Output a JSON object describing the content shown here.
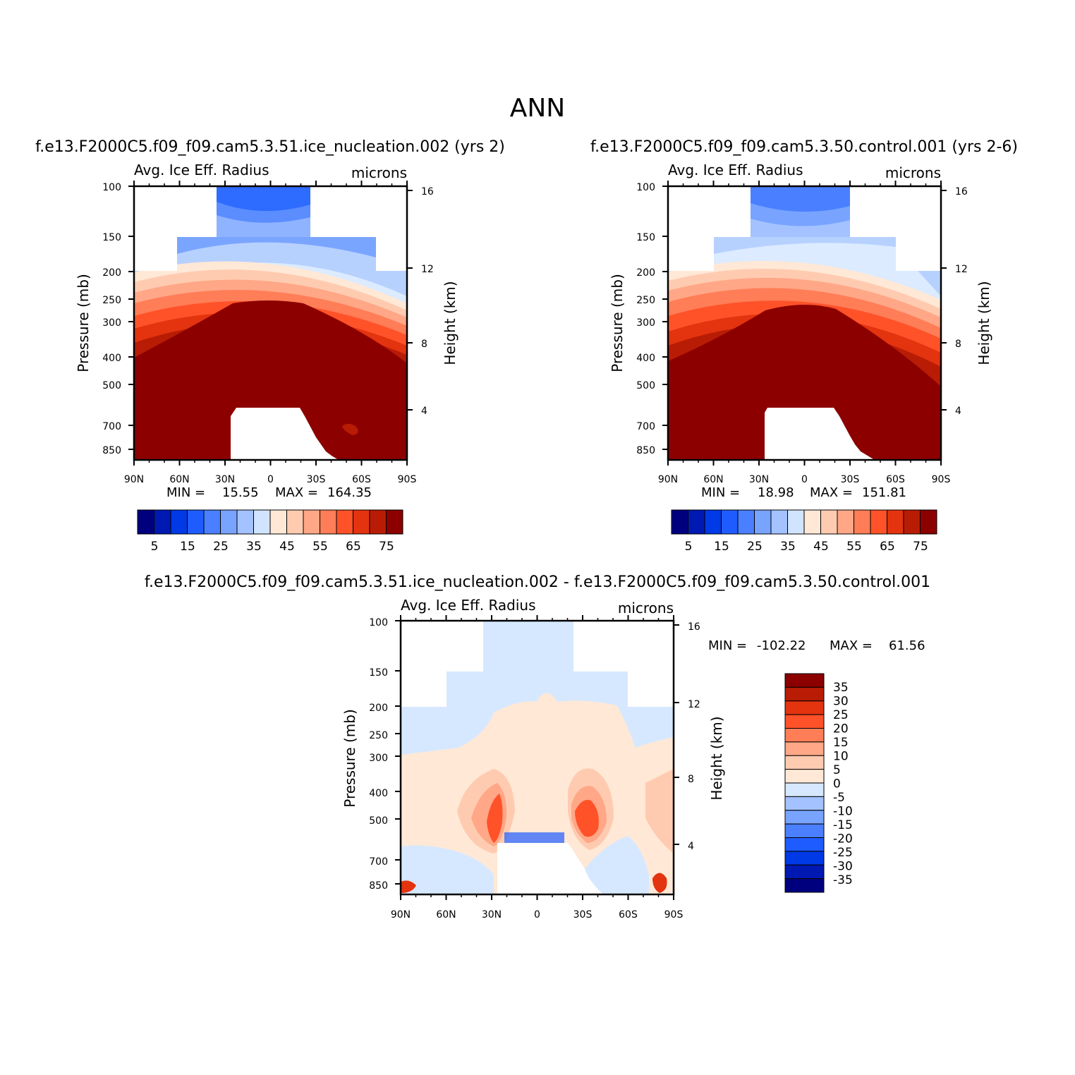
{
  "figure": {
    "title": "ANN"
  },
  "palettes": {
    "sequential": [
      "#00007f",
      "#0019b3",
      "#0039e6",
      "#1f5cff",
      "#4a80ff",
      "#78a3ff",
      "#a3c2ff",
      "#d1e4ff",
      "#ffe8d6",
      "#ffcbb0",
      "#ffa787",
      "#ff7d57",
      "#ff5229",
      "#e3330f",
      "#b81c05",
      "#8c0000"
    ],
    "diverging": [
      "#00007f",
      "#0019b3",
      "#0039e6",
      "#1f5cff",
      "#4a80ff",
      "#78a3ff",
      "#a3c2ff",
      "#d6e8ff",
      "#ffe8d6",
      "#ffcbb0",
      "#ffa787",
      "#ff7d57",
      "#ff5229",
      "#e3330f",
      "#b81c05",
      "#8c0000"
    ]
  },
  "chart_data": [
    {
      "type": "heatmap",
      "title": "f.e13.F2000C5.f09_f09.cam5.3.51.ice_nucleation.002  (yrs  2)",
      "subtitle_left": "Avg.  Ice  Eff.  Radius",
      "subtitle_right": "microns",
      "xlabel": "",
      "ylabel": "Pressure  (mb)",
      "ylabel_right": "Height  (km)",
      "x_ticks": [
        "90N",
        "60N",
        "30N",
        "0",
        "30S",
        "60S",
        "90S"
      ],
      "y_ticks": [
        "100",
        "150",
        "200",
        "250",
        "300",
        "400",
        "500",
        "700",
        "850"
      ],
      "y_ticks_right": [
        "16",
        "12",
        "8",
        "4"
      ],
      "min_label": "MIN  =",
      "min_value": "15.55",
      "max_label": "MAX  =",
      "max_value": "164.35",
      "colorbar_labels": [
        "5",
        "15",
        "25",
        "35",
        "45",
        "55",
        "65",
        "75"
      ],
      "xlim": [
        90,
        -90
      ],
      "ylim": [
        100,
        1000
      ],
      "palette": "sequential"
    },
    {
      "type": "heatmap",
      "title": "f.e13.F2000C5.f09_f09.cam5.3.50.control.001  (yrs  2-6)",
      "subtitle_left": "Avg.  Ice  Eff.  Radius",
      "subtitle_right": "microns",
      "xlabel": "",
      "ylabel": "Pressure  (mb)",
      "ylabel_right": "Height  (km)",
      "x_ticks": [
        "90N",
        "60N",
        "30N",
        "0",
        "30S",
        "60S",
        "90S"
      ],
      "y_ticks": [
        "100",
        "150",
        "200",
        "250",
        "300",
        "400",
        "500",
        "700",
        "850"
      ],
      "y_ticks_right": [
        "16",
        "12",
        "8",
        "4"
      ],
      "min_label": "MIN  =",
      "min_value": "18.98",
      "max_label": "MAX  =",
      "max_value": "151.81",
      "colorbar_labels": [
        "5",
        "15",
        "25",
        "35",
        "45",
        "55",
        "65",
        "75"
      ],
      "xlim": [
        90,
        -90
      ],
      "ylim": [
        100,
        1000
      ],
      "palette": "sequential"
    },
    {
      "type": "heatmap",
      "title": "f.e13.F2000C5.f09_f09.cam5.3.51.ice_nucleation.002  -  f.e13.F2000C5.f09_f09.cam5.3.50.control.001",
      "subtitle_left": "Avg.  Ice  Eff.  Radius",
      "subtitle_right": "microns",
      "xlabel": "",
      "ylabel": "Pressure  (mb)",
      "ylabel_right": "Height  (km)",
      "x_ticks": [
        "90N",
        "60N",
        "30N",
        "0",
        "30S",
        "60S",
        "90S"
      ],
      "y_ticks": [
        "100",
        "150",
        "200",
        "250",
        "300",
        "400",
        "500",
        "700",
        "850"
      ],
      "y_ticks_right": [
        "16",
        "12",
        "8",
        "4"
      ],
      "min_label": "MIN  =",
      "min_value": "-102.22",
      "max_label": "MAX  =",
      "max_value": "61.56",
      "colorbar_labels": [
        "35",
        "30",
        "25",
        "20",
        "15",
        "10",
        "5",
        "0",
        "-5",
        "-10",
        "-15",
        "-20",
        "-25",
        "-30",
        "-35"
      ],
      "xlim": [
        90,
        -90
      ],
      "ylim": [
        100,
        1000
      ],
      "palette": "diverging"
    }
  ]
}
